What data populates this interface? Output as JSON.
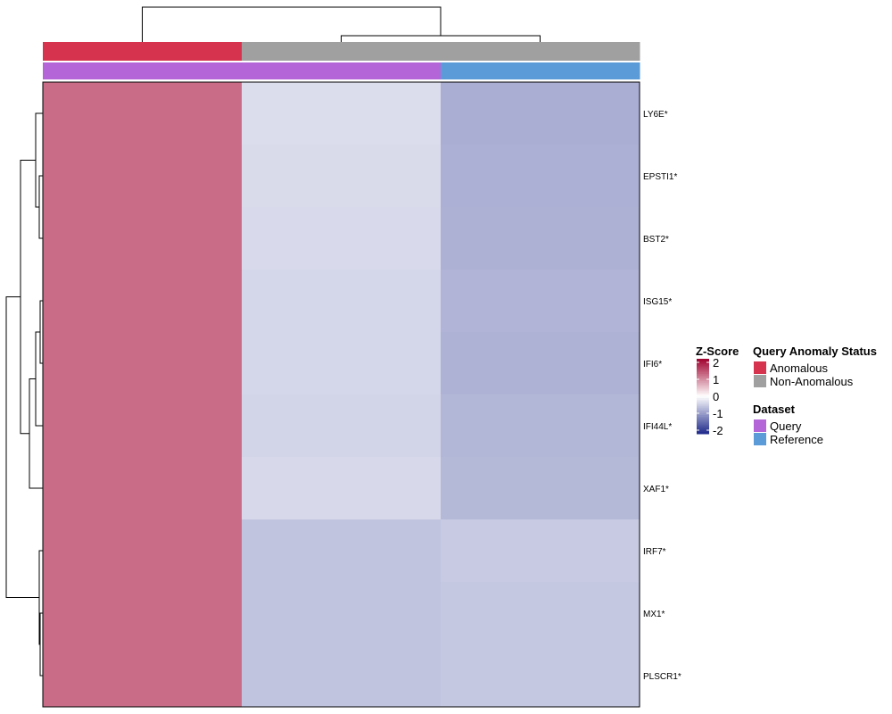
{
  "chart_data": {
    "type": "heatmap",
    "rows": [
      "LY6E*",
      "EPSTI1*",
      "BST2*",
      "ISG15*",
      "IFI6*",
      "IFI44L*",
      "XAF1*",
      "IRF7*",
      "MX1*",
      "PLSCR1*"
    ],
    "columns": [
      {
        "anomaly_status": "Anomalous",
        "dataset": "Query"
      },
      {
        "anomaly_status": "Non-Anomalous",
        "dataset": "Query"
      },
      {
        "anomaly_status": "Non-Anomalous",
        "dataset": "Reference"
      }
    ],
    "values": [
      [
        1.15,
        -0.32,
        -0.76
      ],
      [
        1.15,
        -0.34,
        -0.74
      ],
      [
        1.15,
        -0.35,
        -0.73
      ],
      [
        1.15,
        -0.38,
        -0.7
      ],
      [
        1.15,
        -0.38,
        -0.72
      ],
      [
        1.15,
        -0.4,
        -0.68
      ],
      [
        1.15,
        -0.36,
        -0.66
      ],
      [
        1.15,
        -0.55,
        -0.5
      ],
      [
        1.15,
        -0.55,
        -0.52
      ],
      [
        1.15,
        -0.55,
        -0.52
      ]
    ],
    "color_scale": {
      "title": "Z-Score",
      "min": -2,
      "max": 2,
      "low": "#1F2A8A",
      "mid": "#FFFFFF",
      "high": "#A0002E",
      "ticks": [
        "2",
        "1",
        "0",
        "-1",
        "-2"
      ]
    },
    "annotations": [
      {
        "title": "Query Anomaly Status",
        "items": [
          {
            "label": "Anomalous",
            "color": "#D6334E"
          },
          {
            "label": "Non-Anomalous",
            "color": "#A0A0A0"
          }
        ]
      },
      {
        "title": "Dataset",
        "items": [
          {
            "label": "Query",
            "color": "#B466D8"
          },
          {
            "label": "Reference",
            "color": "#5B9BD8"
          }
        ]
      }
    ]
  }
}
